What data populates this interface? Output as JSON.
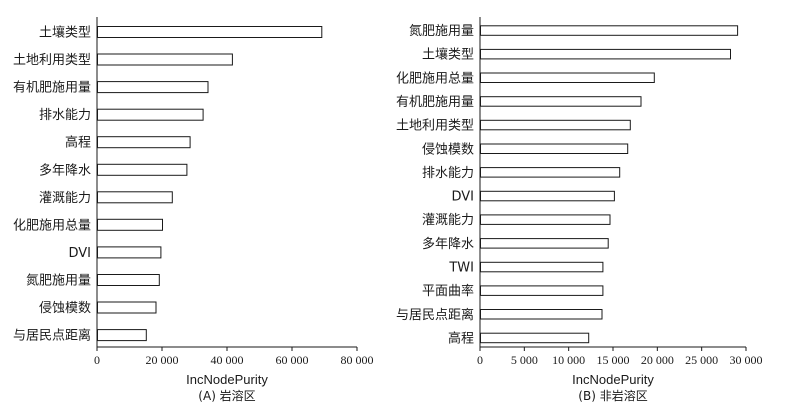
{
  "chart_data": [
    {
      "type": "bar",
      "orientation": "horizontal",
      "categories": [
        "土壤类型",
        "土地利用类型",
        "有机肥施用量",
        "排水能力",
        "高程",
        "多年降水",
        "灌溉能力",
        "化肥施用总量",
        "DVI",
        "氮肥施用量",
        "侵蚀模数",
        "与居民点距离"
      ],
      "values": [
        69000,
        41500,
        34000,
        32500,
        28500,
        27500,
        23000,
        20000,
        19500,
        19000,
        18000,
        15000
      ],
      "xlabel": "IncNodePurity",
      "caption": "(A) 岩溶区",
      "xlim": [
        0,
        80000
      ],
      "xticks": [
        0,
        20000,
        40000,
        60000,
        80000
      ],
      "xtick_labels": [
        "0",
        "20 000",
        "40 000",
        "60 000",
        "80 000"
      ],
      "grid": false
    },
    {
      "type": "bar",
      "orientation": "horizontal",
      "categories": [
        "氮肥施用量",
        "土壤类型",
        "化肥施用总量",
        "有机肥施用量",
        "土地利用类型",
        "侵蚀模数",
        "排水能力",
        "DVI",
        "灌溉能力",
        "多年降水",
        "TWI",
        "平面曲率",
        "与居民点距离",
        "高程"
      ],
      "values": [
        29000,
        28200,
        19600,
        18100,
        16900,
        16600,
        15700,
        15100,
        14600,
        14400,
        13800,
        13800,
        13700,
        12200
      ],
      "xlabel": "IncNodePurity",
      "caption": "(B) 非岩溶区",
      "xlim": [
        0,
        30000
      ],
      "xticks": [
        0,
        5000,
        10000,
        15000,
        20000,
        25000,
        30000
      ],
      "xtick_labels": [
        "0",
        "5 000",
        "10 000",
        "15 000",
        "20 000",
        "25 000",
        "30 000"
      ],
      "grid": false
    }
  ]
}
